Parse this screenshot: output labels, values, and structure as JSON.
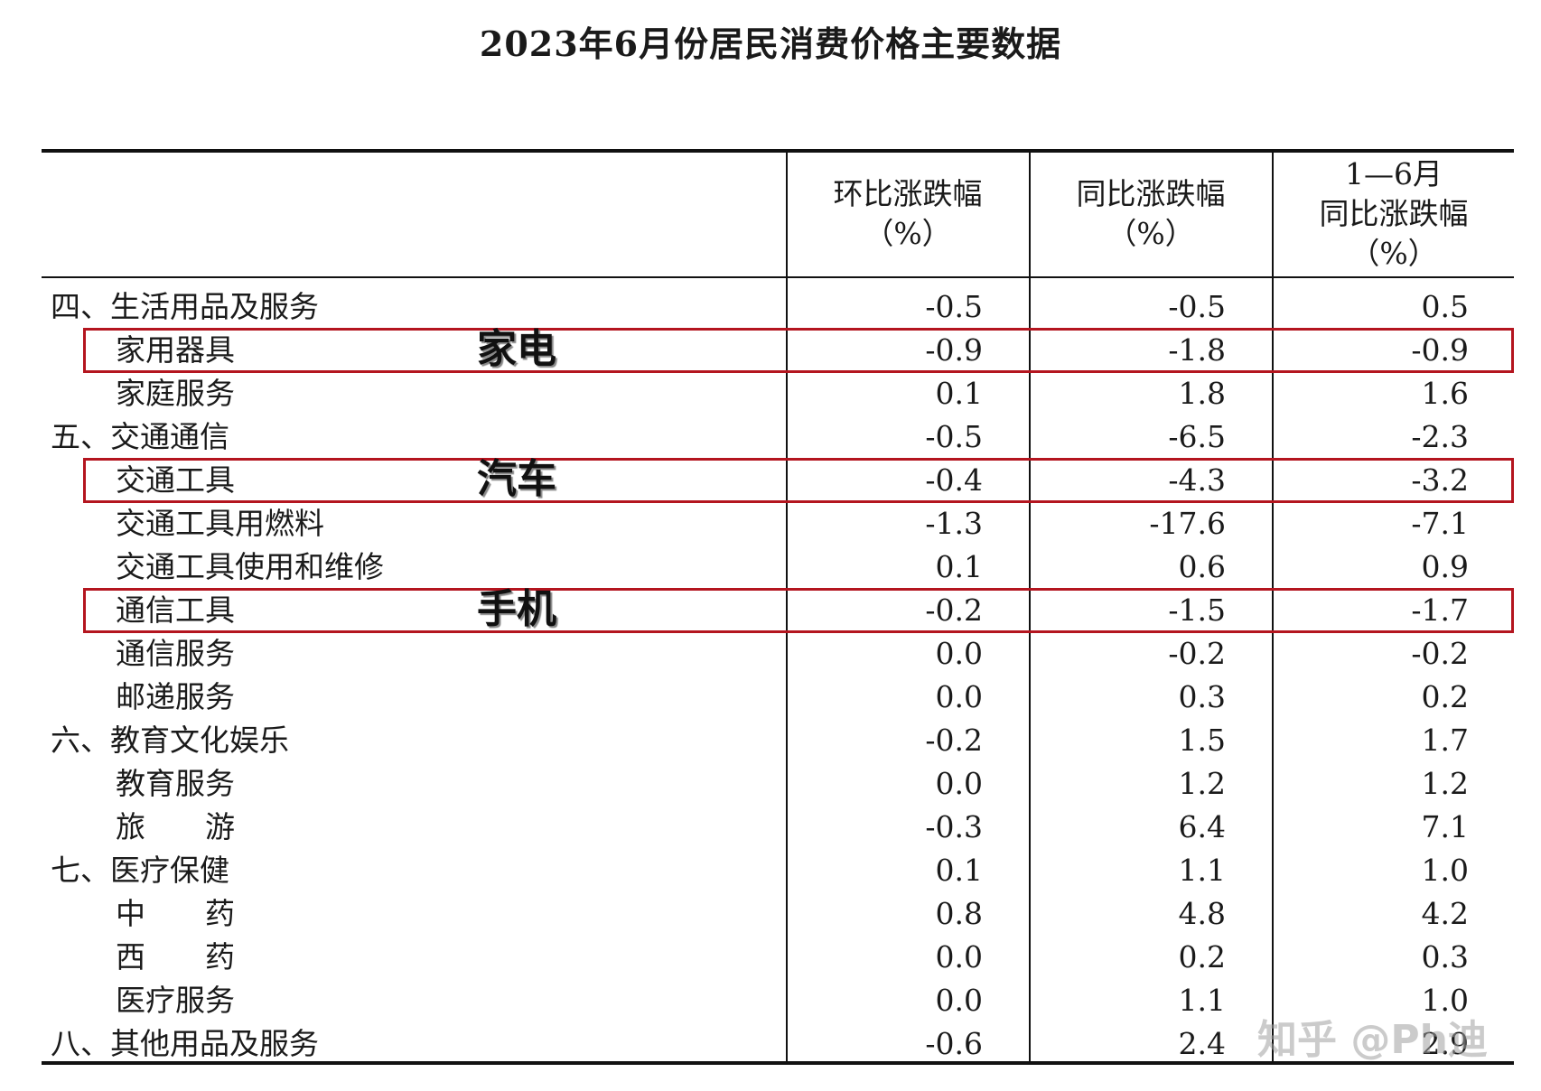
{
  "title": "2023年6月份居民消费价格主要数据",
  "columns": [
    {
      "lines": [
        "环比涨跌幅",
        "（%）"
      ]
    },
    {
      "lines": [
        "同比涨跌幅",
        "（%）"
      ]
    },
    {
      "lines": [
        "1—6月",
        "同比涨跌幅",
        "（%）"
      ]
    }
  ],
  "rows": [
    {
      "label": "四、生活用品及服务",
      "level": 0,
      "values": [
        "-0.5",
        "-0.5",
        "0.5"
      ]
    },
    {
      "label": "家用器具",
      "level": 1,
      "values": [
        "-0.9",
        "-1.8",
        "-0.9"
      ],
      "highlight": "家电"
    },
    {
      "label": "家庭服务",
      "level": 1,
      "values": [
        "0.1",
        "1.8",
        "1.6"
      ]
    },
    {
      "label": "五、交通通信",
      "level": 0,
      "values": [
        "-0.5",
        "-6.5",
        "-2.3"
      ]
    },
    {
      "label": "交通工具",
      "level": 1,
      "values": [
        "-0.4",
        "-4.3",
        "-3.2"
      ],
      "highlight": "汽车"
    },
    {
      "label": "交通工具用燃料",
      "level": 1,
      "values": [
        "-1.3",
        "-17.6",
        "-7.1"
      ]
    },
    {
      "label": "交通工具使用和维修",
      "level": 1,
      "values": [
        "0.1",
        "0.6",
        "0.9"
      ]
    },
    {
      "label": "通信工具",
      "level": 1,
      "values": [
        "-0.2",
        "-1.5",
        "-1.7"
      ],
      "highlight": "手机"
    },
    {
      "label": "通信服务",
      "level": 1,
      "values": [
        "0.0",
        "-0.2",
        "-0.2"
      ]
    },
    {
      "label": "邮递服务",
      "level": 1,
      "values": [
        "0.0",
        "0.3",
        "0.2"
      ]
    },
    {
      "label": "六、教育文化娱乐",
      "level": 0,
      "values": [
        "-0.2",
        "1.5",
        "1.7"
      ]
    },
    {
      "label": "教育服务",
      "level": 1,
      "values": [
        "0.0",
        "1.2",
        "1.2"
      ]
    },
    {
      "label": "旅　　游",
      "level": 1,
      "values": [
        "-0.3",
        "6.4",
        "7.1"
      ]
    },
    {
      "label": "七、医疗保健",
      "level": 0,
      "values": [
        "0.1",
        "1.1",
        "1.0"
      ]
    },
    {
      "label": "中　　药",
      "level": 1,
      "values": [
        "0.8",
        "4.8",
        "4.2"
      ]
    },
    {
      "label": "西　　药",
      "level": 1,
      "values": [
        "0.0",
        "0.2",
        "0.3"
      ]
    },
    {
      "label": "医疗服务",
      "level": 1,
      "values": [
        "0.0",
        "1.1",
        "1.0"
      ]
    },
    {
      "label": "八、其他用品及服务",
      "level": 0,
      "values": [
        "-0.6",
        "2.4",
        "2.9"
      ]
    }
  ],
  "watermark": "知乎 @Ph迪",
  "colors": {
    "highlight_border": "#b4151f"
  }
}
